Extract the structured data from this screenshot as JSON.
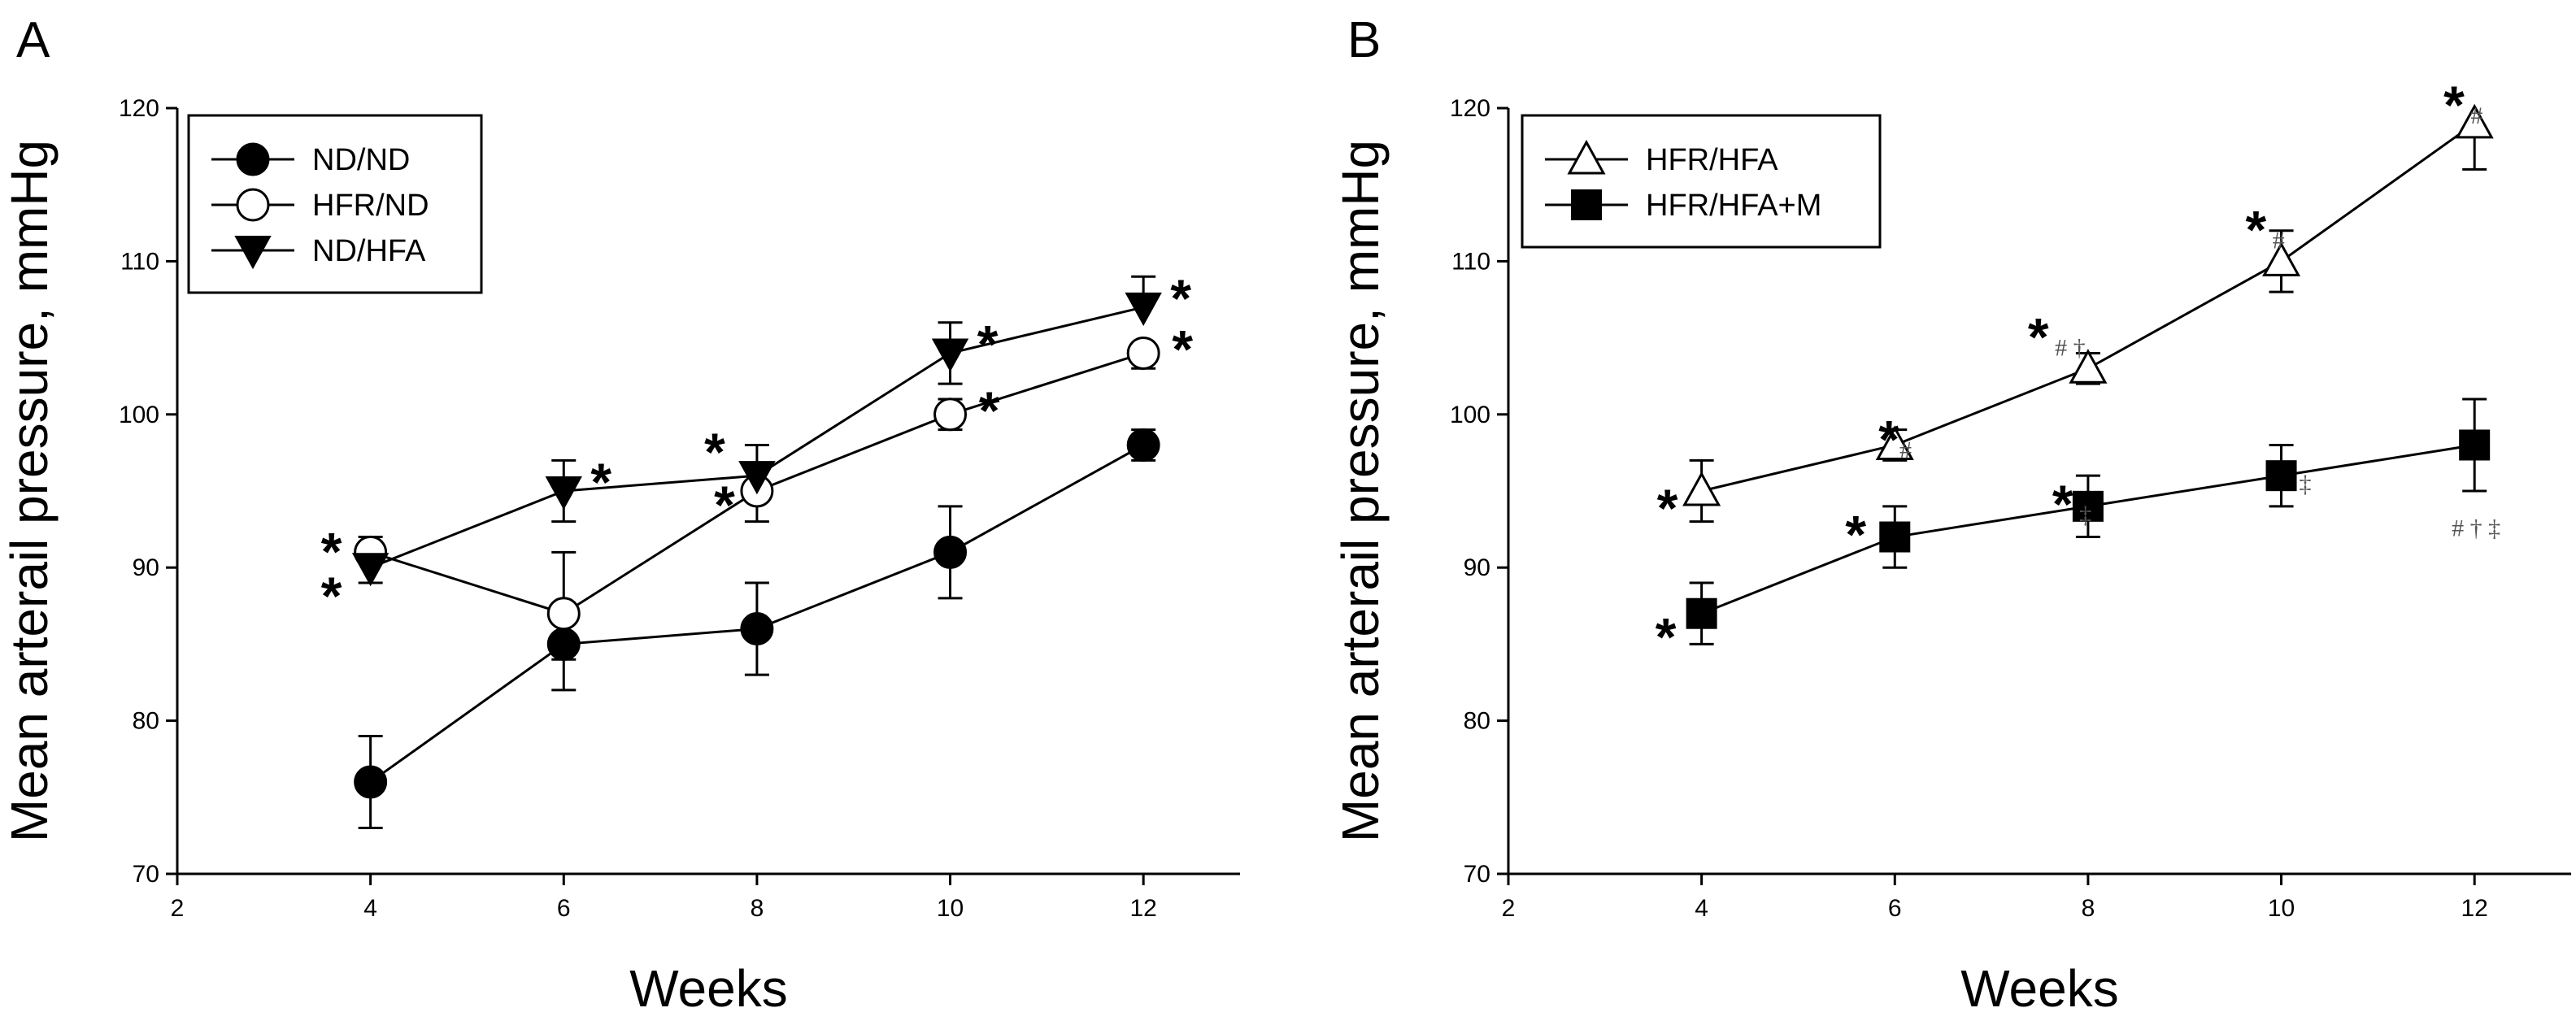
{
  "chart_data": [
    {
      "type": "line",
      "panel_label": "A",
      "xlabel": "Weeks",
      "ylabel": "Mean arterail pressure, mmHg",
      "xlim": [
        2,
        13
      ],
      "ylim": [
        70,
        120
      ],
      "x_ticks": [
        "2",
        "4",
        "6",
        "8",
        "10",
        "12"
      ],
      "y_ticks": [
        "70",
        "80",
        "90",
        "100",
        "110",
        "120"
      ],
      "legend_position": "top-left",
      "series": [
        {
          "name": "ND/ND",
          "marker": "filled-circle",
          "points": [
            {
              "x": 4,
              "y": 76,
              "err_low": 3,
              "err_high": 3,
              "annotation": ""
            },
            {
              "x": 6,
              "y": 85,
              "err_low": 3,
              "err_high": 0,
              "annotation": ""
            },
            {
              "x": 8,
              "y": 86,
              "err_low": 3,
              "err_high": 3,
              "annotation": ""
            },
            {
              "x": 10,
              "y": 91,
              "err_low": 3,
              "err_high": 3,
              "annotation": ""
            },
            {
              "x": 12,
              "y": 98,
              "err_low": 1,
              "err_high": 1,
              "annotation": ""
            }
          ]
        },
        {
          "name": "HFR/ND",
          "marker": "open-circle",
          "points": [
            {
              "x": 4,
              "y": 91,
              "err_low": 0,
              "err_high": 1,
              "annotation": "*"
            },
            {
              "x": 6,
              "y": 87,
              "err_low": 3,
              "err_high": 4,
              "annotation": ""
            },
            {
              "x": 8,
              "y": 95,
              "err_low": 2,
              "err_high": 0,
              "annotation": "*"
            },
            {
              "x": 10,
              "y": 100,
              "err_low": 1,
              "err_high": 1,
              "annotation": "*"
            },
            {
              "x": 12,
              "y": 104,
              "err_low": 1,
              "err_high": 0,
              "annotation": "*"
            }
          ]
        },
        {
          "name": "ND/HFA",
          "marker": "filled-triangle-down",
          "points": [
            {
              "x": 4,
              "y": 90,
              "err_low": 1,
              "err_high": 0,
              "annotation": "*"
            },
            {
              "x": 6,
              "y": 95,
              "err_low": 2,
              "err_high": 2,
              "annotation": "*"
            },
            {
              "x": 8,
              "y": 96,
              "err_low": 0,
              "err_high": 2,
              "annotation": "*"
            },
            {
              "x": 10,
              "y": 104,
              "err_low": 2,
              "err_high": 2,
              "annotation": "*"
            },
            {
              "x": 12,
              "y": 107,
              "err_low": 0,
              "err_high": 2,
              "annotation": "*"
            }
          ]
        }
      ]
    },
    {
      "type": "line",
      "panel_label": "B",
      "xlabel": "Weeks",
      "ylabel": "Mean arterail pressure, mmHg",
      "xlim": [
        2,
        13
      ],
      "ylim": [
        70,
        120
      ],
      "x_ticks": [
        "2",
        "4",
        "6",
        "8",
        "10",
        "12"
      ],
      "y_ticks": [
        "70",
        "80",
        "90",
        "100",
        "110",
        "120"
      ],
      "legend_position": "top-left",
      "series": [
        {
          "name": "HFR/HFA",
          "marker": "open-triangle-up",
          "points": [
            {
              "x": 4,
              "y": 95,
              "err_low": 2,
              "err_high": 2,
              "annotation": "*"
            },
            {
              "x": 6,
              "y": 98,
              "err_low": 1,
              "err_high": 1,
              "annotation": "*#"
            },
            {
              "x": 8,
              "y": 103,
              "err_low": 1,
              "err_high": 1,
              "annotation": "* # †"
            },
            {
              "x": 10,
              "y": 110,
              "err_low": 2,
              "err_high": 2,
              "annotation": "* #"
            },
            {
              "x": 12,
              "y": 119,
              "err_low": 3,
              "err_high": 0,
              "annotation": "* #"
            }
          ]
        },
        {
          "name": "HFR/HFA+M",
          "marker": "filled-square",
          "points": [
            {
              "x": 4,
              "y": 87,
              "err_low": 2,
              "err_high": 2,
              "annotation": "*"
            },
            {
              "x": 6,
              "y": 92,
              "err_low": 2,
              "err_high": 2,
              "annotation": "*"
            },
            {
              "x": 8,
              "y": 94,
              "err_low": 2,
              "err_high": 2,
              "annotation": "* ‡"
            },
            {
              "x": 10,
              "y": 96,
              "err_low": 2,
              "err_high": 2,
              "annotation": "‡"
            },
            {
              "x": 12,
              "y": 98,
              "err_low": 3,
              "err_high": 3,
              "annotation": "# † ‡"
            }
          ]
        }
      ]
    }
  ]
}
